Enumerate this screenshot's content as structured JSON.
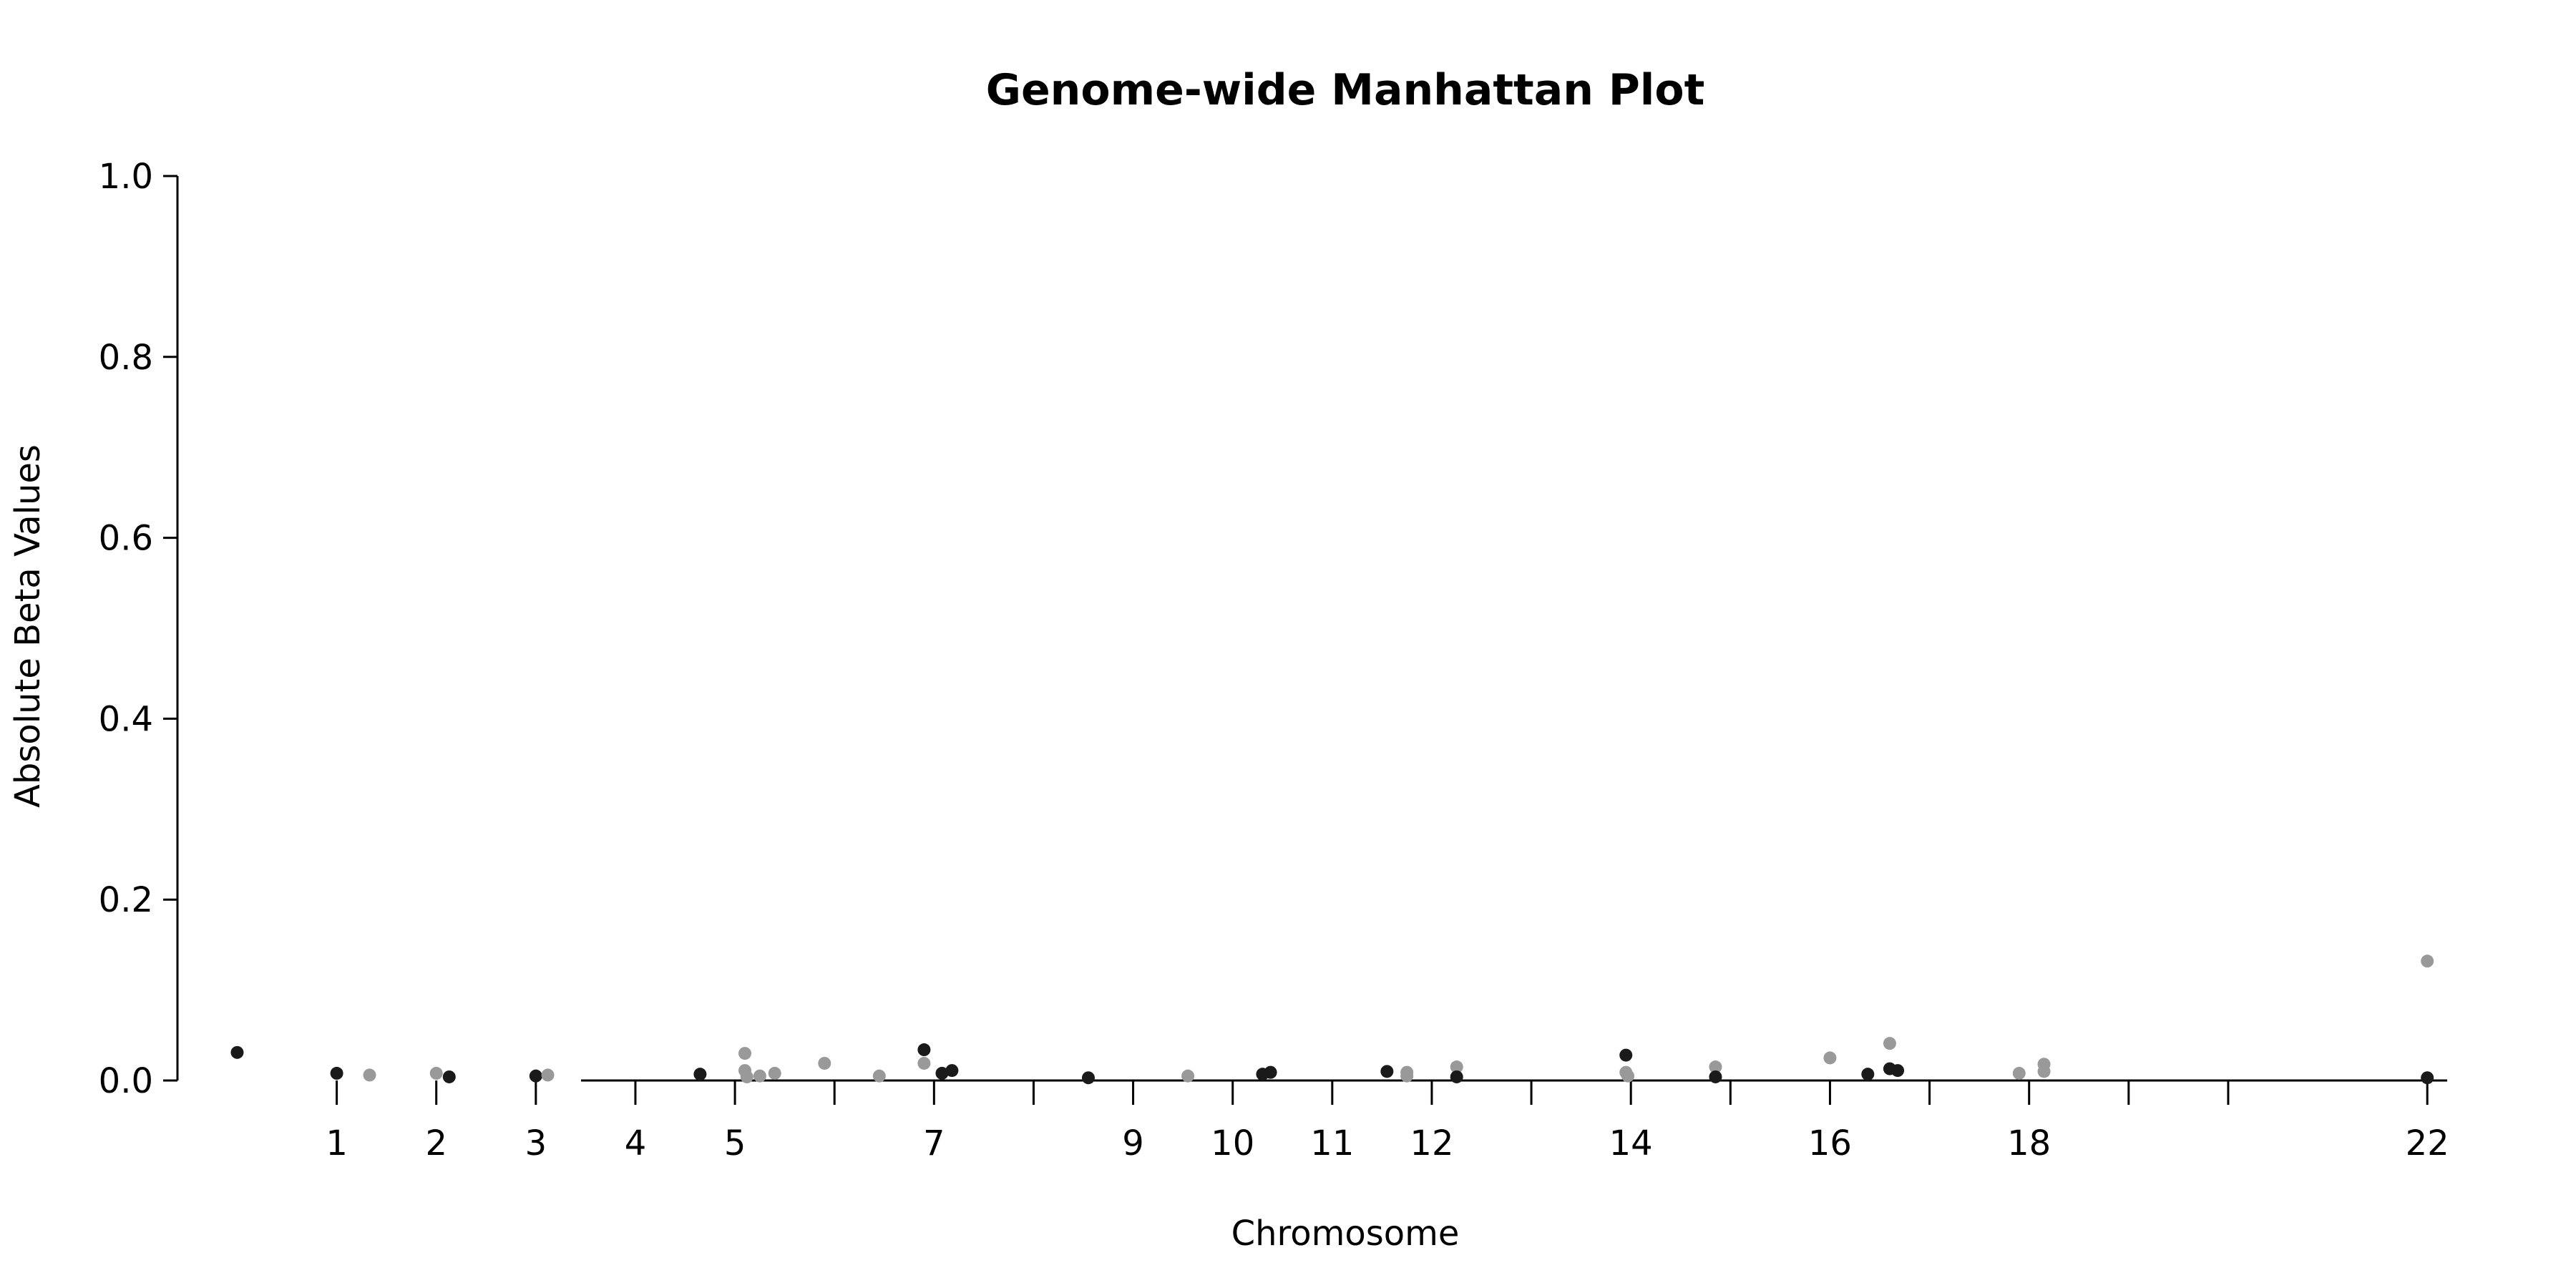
{
  "chart_data": {
    "type": "scatter",
    "title": "Genome-wide Manhattan Plot",
    "xlabel": "Chromosome",
    "ylabel": "Absolute Beta Values",
    "ylim": [
      0,
      1
    ],
    "yticks": [
      "0.0",
      "0.2",
      "0.4",
      "0.6",
      "0.8",
      "1.0"
    ],
    "xlim": [
      -0.6,
      22.2
    ],
    "xticks": [
      {
        "pos": 1,
        "label": "1"
      },
      {
        "pos": 2,
        "label": "2"
      },
      {
        "pos": 3,
        "label": "3"
      },
      {
        "pos": 4,
        "label": "4"
      },
      {
        "pos": 5,
        "label": "5"
      },
      {
        "pos": 6,
        "label": ""
      },
      {
        "pos": 7,
        "label": "7"
      },
      {
        "pos": 8,
        "label": ""
      },
      {
        "pos": 9,
        "label": "9"
      },
      {
        "pos": 10,
        "label": "10"
      },
      {
        "pos": 11,
        "label": "11"
      },
      {
        "pos": 12,
        "label": "12"
      },
      {
        "pos": 13,
        "label": ""
      },
      {
        "pos": 14,
        "label": "14"
      },
      {
        "pos": 15,
        "label": ""
      },
      {
        "pos": 16,
        "label": "16"
      },
      {
        "pos": 17,
        "label": ""
      },
      {
        "pos": 18,
        "label": "18"
      },
      {
        "pos": 19,
        "label": ""
      },
      {
        "pos": 20,
        "label": ""
      },
      {
        "pos": 22,
        "label": "22"
      }
    ],
    "grid": false,
    "colors": {
      "dark": "#1a1a1a",
      "light": "#999999"
    },
    "points": [
      {
        "x": 0.0,
        "y": 0.031,
        "c": "dark"
      },
      {
        "x": 1.0,
        "y": 0.008,
        "c": "dark"
      },
      {
        "x": 1.33,
        "y": 0.006,
        "c": "light"
      },
      {
        "x": 2.0,
        "y": 0.008,
        "c": "light"
      },
      {
        "x": 2.13,
        "y": 0.004,
        "c": "dark"
      },
      {
        "x": 3.0,
        "y": 0.005,
        "c": "dark"
      },
      {
        "x": 3.12,
        "y": 0.006,
        "c": "light"
      },
      {
        "x": 4.65,
        "y": 0.007,
        "c": "dark"
      },
      {
        "x": 5.1,
        "y": 0.03,
        "c": "light"
      },
      {
        "x": 5.1,
        "y": 0.011,
        "c": "light"
      },
      {
        "x": 5.12,
        "y": 0.004,
        "c": "light"
      },
      {
        "x": 5.25,
        "y": 0.005,
        "c": "light"
      },
      {
        "x": 5.4,
        "y": 0.008,
        "c": "light"
      },
      {
        "x": 5.9,
        "y": 0.019,
        "c": "light"
      },
      {
        "x": 6.45,
        "y": 0.005,
        "c": "light"
      },
      {
        "x": 6.9,
        "y": 0.034,
        "c": "dark"
      },
      {
        "x": 6.9,
        "y": 0.019,
        "c": "light"
      },
      {
        "x": 7.08,
        "y": 0.008,
        "c": "dark"
      },
      {
        "x": 7.18,
        "y": 0.011,
        "c": "dark"
      },
      {
        "x": 8.55,
        "y": 0.003,
        "c": "dark"
      },
      {
        "x": 9.55,
        "y": 0.005,
        "c": "light"
      },
      {
        "x": 10.3,
        "y": 0.007,
        "c": "dark"
      },
      {
        "x": 10.38,
        "y": 0.009,
        "c": "dark"
      },
      {
        "x": 11.55,
        "y": 0.01,
        "c": "dark"
      },
      {
        "x": 11.75,
        "y": 0.009,
        "c": "light"
      },
      {
        "x": 11.75,
        "y": 0.005,
        "c": "light"
      },
      {
        "x": 12.25,
        "y": 0.015,
        "c": "light"
      },
      {
        "x": 12.25,
        "y": 0.004,
        "c": "dark"
      },
      {
        "x": 13.95,
        "y": 0.028,
        "c": "dark"
      },
      {
        "x": 13.95,
        "y": 0.009,
        "c": "light"
      },
      {
        "x": 13.97,
        "y": 0.005,
        "c": "light"
      },
      {
        "x": 14.85,
        "y": 0.015,
        "c": "light"
      },
      {
        "x": 14.85,
        "y": 0.004,
        "c": "dark"
      },
      {
        "x": 16.0,
        "y": 0.025,
        "c": "light"
      },
      {
        "x": 16.38,
        "y": 0.007,
        "c": "dark"
      },
      {
        "x": 16.6,
        "y": 0.013,
        "c": "dark"
      },
      {
        "x": 16.68,
        "y": 0.011,
        "c": "dark"
      },
      {
        "x": 16.6,
        "y": 0.041,
        "c": "light"
      },
      {
        "x": 17.9,
        "y": 0.008,
        "c": "light"
      },
      {
        "x": 18.15,
        "y": 0.018,
        "c": "light"
      },
      {
        "x": 18.15,
        "y": 0.01,
        "c": "light"
      },
      {
        "x": 22.0,
        "y": 0.132,
        "c": "light"
      },
      {
        "x": 22.0,
        "y": 0.003,
        "c": "dark"
      }
    ]
  }
}
